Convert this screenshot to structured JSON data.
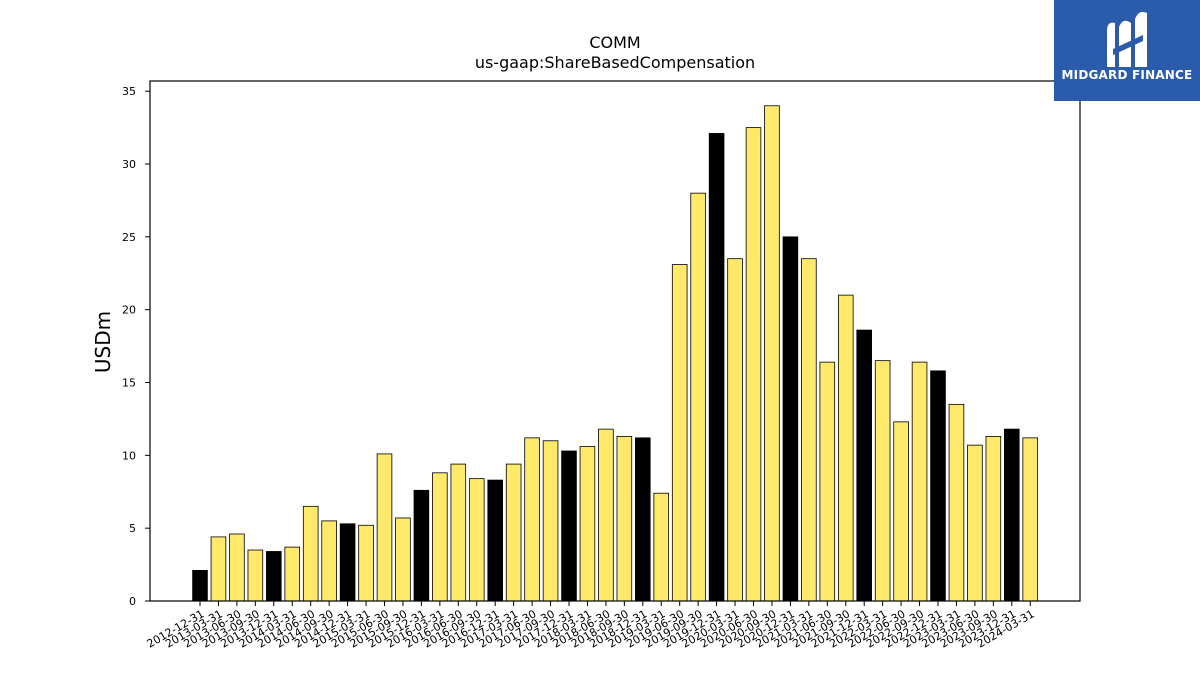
{
  "chart_data": {
    "type": "bar",
    "title": "COMM",
    "subtitle": "us-gaap:ShareBasedCompensation",
    "ylabel": "USDm",
    "xlabel": "",
    "ylim": [
      0,
      35.7
    ],
    "yticks": [
      0,
      5,
      10,
      15,
      20,
      25,
      30,
      35
    ],
    "grid": false,
    "legend": "none",
    "colors": {
      "quarter": "#ffe96b",
      "year_end": "#000000",
      "edge": "#000000"
    },
    "categories": [
      "2012-12-31",
      "2013-03-31",
      "2013-06-30",
      "2013-09-30",
      "2013-12-31",
      "2014-03-31",
      "2014-06-30",
      "2014-09-30",
      "2014-12-31",
      "2015-03-31",
      "2015-06-30",
      "2015-09-30",
      "2015-12-31",
      "2016-03-31",
      "2016-06-30",
      "2016-09-30",
      "2016-12-31",
      "2017-03-31",
      "2017-06-30",
      "2017-09-30",
      "2017-12-31",
      "2018-03-31",
      "2018-06-30",
      "2018-09-30",
      "2018-12-31",
      "2019-03-31",
      "2019-06-30",
      "2019-09-30",
      "2019-12-31",
      "2020-03-31",
      "2020-06-30",
      "2020-09-30",
      "2020-12-31",
      "2021-03-31",
      "2021-06-30",
      "2021-09-30",
      "2021-12-31",
      "2022-03-31",
      "2022-06-30",
      "2022-09-30",
      "2022-12-31",
      "2023-03-31",
      "2023-06-30",
      "2023-09-30",
      "2023-12-31",
      "2024-03-31"
    ],
    "values": [
      2.1,
      4.4,
      4.6,
      3.5,
      3.4,
      3.7,
      6.5,
      5.5,
      5.3,
      5.2,
      10.1,
      5.7,
      7.6,
      8.8,
      9.4,
      8.4,
      8.3,
      9.4,
      11.2,
      11.0,
      10.3,
      10.6,
      11.8,
      11.3,
      11.2,
      7.4,
      23.1,
      28.0,
      32.1,
      23.5,
      32.5,
      34.0,
      25.0,
      23.5,
      16.4,
      21.0,
      18.6,
      16.5,
      12.3,
      16.4,
      15.8,
      13.5,
      10.7,
      11.3,
      11.8,
      11.2
    ]
  },
  "brand": {
    "name": "MIDGARD FINANCE",
    "icon": "midgard-logo-icon",
    "color": "#2b5bab"
  }
}
